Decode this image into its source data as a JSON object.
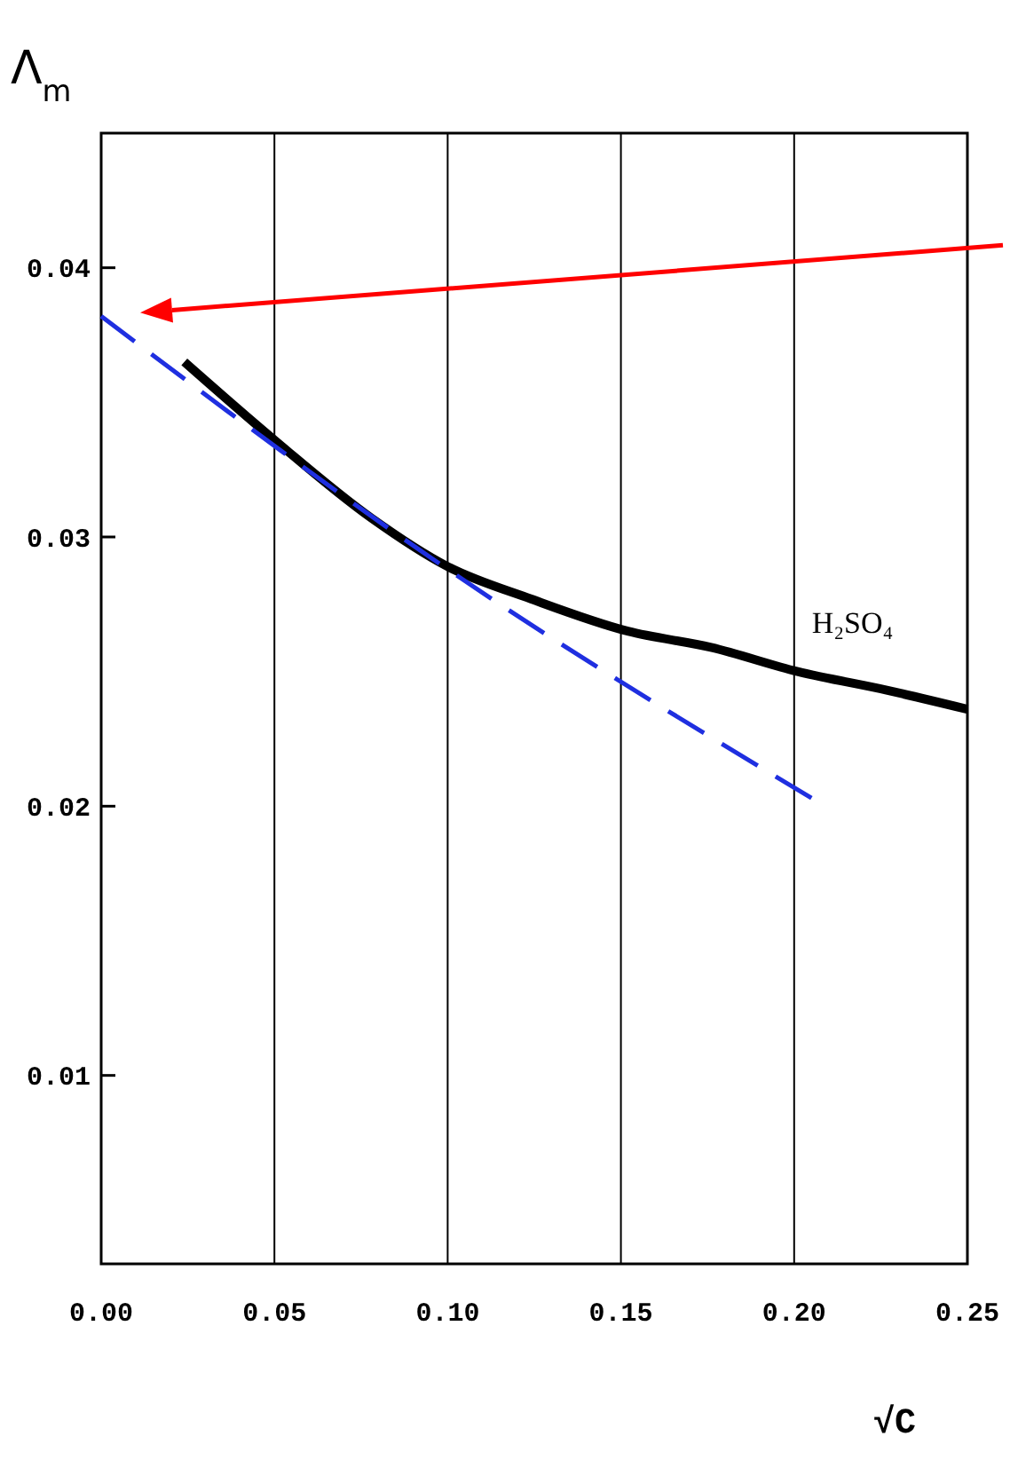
{
  "chart_data": {
    "type": "line",
    "xlabel": "√C",
    "ylabel": "Λ$_{m}$",
    "xlim": [
      0,
      0.25
    ],
    "xticks": [
      {
        "value": 0,
        "label": "0.00"
      },
      {
        "value": 0.05,
        "label": "0.05"
      },
      {
        "value": 0.1,
        "label": "0.10"
      },
      {
        "value": 0.15,
        "label": "0.15"
      },
      {
        "value": 0.2,
        "label": "0.20"
      },
      {
        "value": 0.25,
        "label": "0.25"
      }
    ],
    "ylim": [
      0.003,
      0.045
    ],
    "yticks": [
      0.01,
      0.02,
      0.03,
      0.04
    ],
    "grid": "x",
    "marker": "none",
    "series": [
      {
        "name": "H₂SO₄",
        "color": "#000000",
        "line_style": "solid",
        "x": [
          0.024,
          0.05,
          0.078,
          0.1,
          0.124,
          0.152,
          0.176,
          0.201,
          0.227,
          0.25
        ],
        "values": [
          0.0365,
          0.0336,
          0.0307,
          0.0289,
          0.0277,
          0.0265,
          0.0259,
          0.025,
          0.0243,
          0.0236
        ]
      },
      {
        "color": "#1f2fe0",
        "line_style": "dashed",
        "x": [
          0,
          0.1,
          0.205
        ],
        "values": [
          0.0382,
          0.0288,
          0.0203
        ]
      }
    ]
  }
}
